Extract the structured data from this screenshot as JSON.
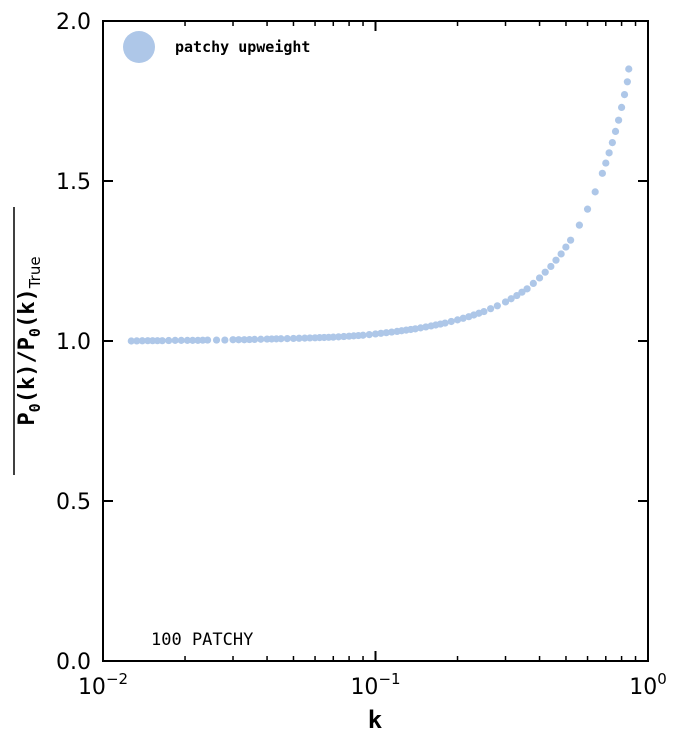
{
  "chart_data": {
    "type": "scatter",
    "xscale": "log",
    "xlim": [
      0.01,
      1.0
    ],
    "ylim": [
      0.0,
      2.0
    ],
    "xlabel": "k",
    "ylabel": "P0(k)/P0(k)True",
    "xticks": [
      {
        "value": 0.01,
        "base": "10",
        "exp": "−2"
      },
      {
        "value": 0.1,
        "base": "10",
        "exp": "−1"
      },
      {
        "value": 1.0,
        "base": "10",
        "exp": "0"
      }
    ],
    "yticks": [
      {
        "value": 0.0,
        "label": "0.0"
      },
      {
        "value": 0.5,
        "label": "0.5"
      },
      {
        "value": 1.0,
        "label": "1.0"
      },
      {
        "value": 1.5,
        "label": "1.5"
      },
      {
        "value": 2.0,
        "label": "2.0"
      }
    ],
    "legend": {
      "position": "top-left"
    },
    "annotation": "100 PATCHY",
    "series": [
      {
        "name": "patchy upweight",
        "color": "#aec7e8",
        "x": [
          0.0127,
          0.0146,
          0.0165,
          0.0184,
          0.0204,
          0.0223,
          0.0242,
          0.0261,
          0.028,
          0.03,
          0.033,
          0.036,
          0.04,
          0.045,
          0.05,
          0.055,
          0.06,
          0.07,
          0.08,
          0.09,
          0.1,
          0.12,
          0.14,
          0.16,
          0.18,
          0.2,
          0.22,
          0.25,
          0.28,
          0.3,
          0.33,
          0.36,
          0.4,
          0.44,
          0.48,
          0.52,
          0.56,
          0.6,
          0.64,
          0.68,
          0.7,
          0.72,
          0.74,
          0.76,
          0.78,
          0.8,
          0.82,
          0.84,
          0.85
        ],
        "y": [
          1.0,
          1.001,
          1.001,
          1.002,
          1.002,
          1.002,
          1.003,
          1.003,
          1.003,
          1.004,
          1.004,
          1.005,
          1.006,
          1.007,
          1.008,
          1.009,
          1.01,
          1.012,
          1.015,
          1.018,
          1.022,
          1.03,
          1.038,
          1.047,
          1.056,
          1.066,
          1.076,
          1.092,
          1.11,
          1.122,
          1.142,
          1.163,
          1.197,
          1.233,
          1.272,
          1.315,
          1.362,
          1.412,
          1.466,
          1.524,
          1.556,
          1.588,
          1.62,
          1.655,
          1.69,
          1.73,
          1.77,
          1.81,
          1.85
        ]
      }
    ]
  }
}
